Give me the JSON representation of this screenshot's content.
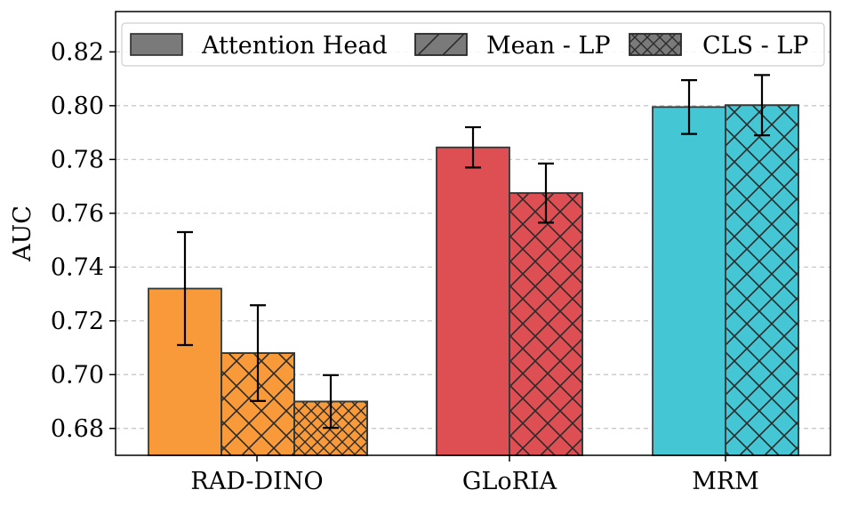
{
  "chart_data": {
    "type": "bar",
    "title": "",
    "xlabel": "",
    "ylabel": "AUC",
    "ylim": [
      0.67,
      0.835
    ],
    "yticks": [
      "0.68",
      "0.70",
      "0.72",
      "0.74",
      "0.76",
      "0.78",
      "0.80",
      "0.82"
    ],
    "grid": "y-dashed",
    "legend_position": "top",
    "categories": [
      "RAD-DINO",
      "GLoRIA",
      "MRM"
    ],
    "group_colors": [
      "#F99A3A",
      "#DE4F53",
      "#44C6D4"
    ],
    "series": [
      {
        "name": "Attention Head",
        "hatch": "none",
        "values": [
          0.732,
          0.7845,
          0.7995
        ],
        "errors": [
          0.021,
          0.0075,
          0.01
        ]
      },
      {
        "name": "Mean - LP",
        "hatch": "diagonal",
        "values": [
          0.708,
          0.7675,
          0.8002
        ],
        "errors": [
          0.0178,
          0.011,
          0.0112
        ]
      },
      {
        "name": "CLS - LP",
        "hatch": "cross",
        "values": [
          0.69,
          null,
          null
        ],
        "errors": [
          0.0098,
          null,
          null
        ]
      }
    ]
  }
}
